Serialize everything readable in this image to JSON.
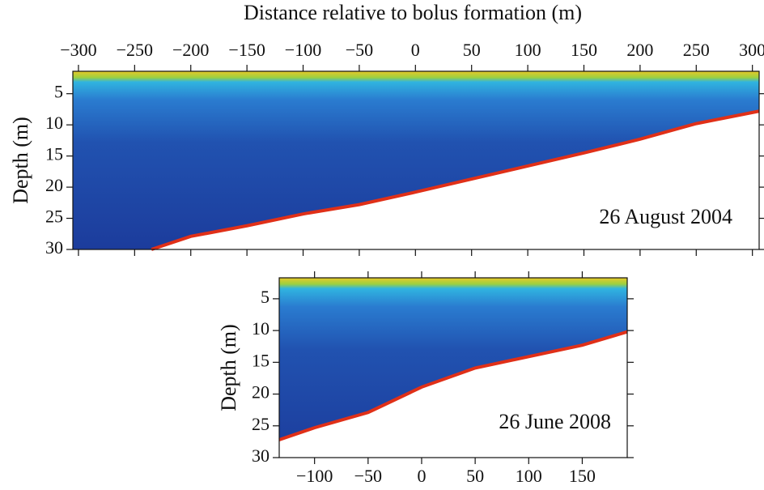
{
  "chart_data": [
    {
      "type": "echogram",
      "xlabel": "Distance relative to bolus formation (m)",
      "ylabel": "Depth (m)",
      "xaxis": "top",
      "annotation": "26 August 2004",
      "x": [
        -235,
        -200,
        -150,
        -100,
        -50,
        0,
        50,
        100,
        150,
        200,
        250,
        306
      ],
      "values": [
        30,
        27.9,
        26.2,
        24.3,
        22.8,
        20.8,
        18.7,
        16.6,
        14.5,
        12.3,
        9.8,
        7.8
      ],
      "xlim": [
        -305,
        306
      ],
      "ylim": [
        1.4,
        30
      ],
      "xticks": [
        {
          "value": -300,
          "label": "−300"
        },
        {
          "value": -250,
          "label": "−250"
        },
        {
          "value": -200,
          "label": "−200"
        },
        {
          "value": -150,
          "label": "−150"
        },
        {
          "value": -100,
          "label": "−100"
        },
        {
          "value": -50,
          "label": "−50"
        },
        0,
        50,
        100,
        150,
        200,
        250,
        300
      ],
      "yticks": [
        5,
        10,
        15,
        20,
        25,
        30
      ]
    },
    {
      "type": "echogram",
      "ylabel": "Depth (m)",
      "xaxis": "bottom",
      "annotation": "26 June 2008",
      "x": [
        -133,
        -100,
        -50,
        0,
        50,
        100,
        150,
        192
      ],
      "values": [
        27.2,
        25.3,
        22.9,
        18.9,
        15.9,
        14.1,
        12.3,
        10.2
      ],
      "xlim": [
        -133,
        192
      ],
      "ylim": [
        1.7,
        30
      ],
      "xticks": [
        {
          "value": -100,
          "label": "−100"
        },
        {
          "value": -50,
          "label": "−50"
        },
        0,
        50,
        100,
        150
      ],
      "yticks": [
        5,
        10,
        15,
        20,
        25,
        30
      ]
    }
  ]
}
